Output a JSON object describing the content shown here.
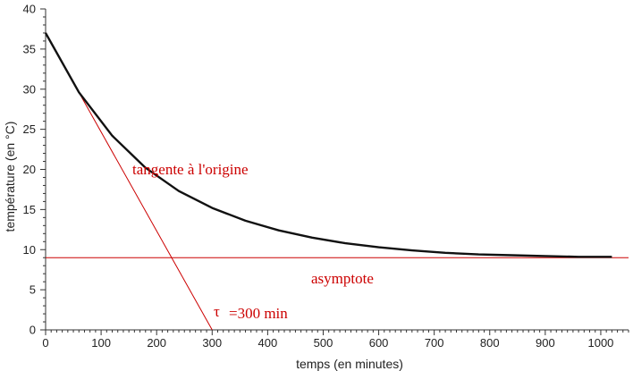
{
  "chart_data": {
    "type": "line",
    "xlabel": "temps (en minutes)",
    "ylabel": "température (en °C)",
    "xlim": [
      0,
      1050
    ],
    "ylim": [
      0,
      40
    ],
    "x_ticks": [
      0,
      100,
      200,
      300,
      400,
      500,
      600,
      700,
      800,
      900,
      1000
    ],
    "y_ticks": [
      0,
      5,
      10,
      15,
      20,
      25,
      30,
      35,
      40
    ],
    "grid": false,
    "series": [
      {
        "color": "#111111",
        "x": [
          0,
          60,
          120,
          180,
          240,
          300,
          360,
          420,
          480,
          540,
          600,
          660,
          720,
          780,
          840,
          900,
          960,
          1020
        ],
        "y": [
          37.0,
          29.6,
          24.2,
          20.2,
          17.3,
          15.2,
          13.6,
          12.4,
          11.5,
          10.8,
          10.3,
          9.9,
          9.6,
          9.4,
          9.3,
          9.2,
          9.1,
          9.1
        ]
      }
    ],
    "asymptote": {
      "y": 9,
      "color": "#cc0000",
      "label": "asymptote"
    },
    "tangent": {
      "x": [
        0,
        300
      ],
      "y": [
        37,
        0
      ],
      "color": "#cc0000",
      "label": "tangente à l'origine"
    },
    "tau": {
      "symbol": "τ",
      "label": "=300 min",
      "value": 300
    }
  }
}
